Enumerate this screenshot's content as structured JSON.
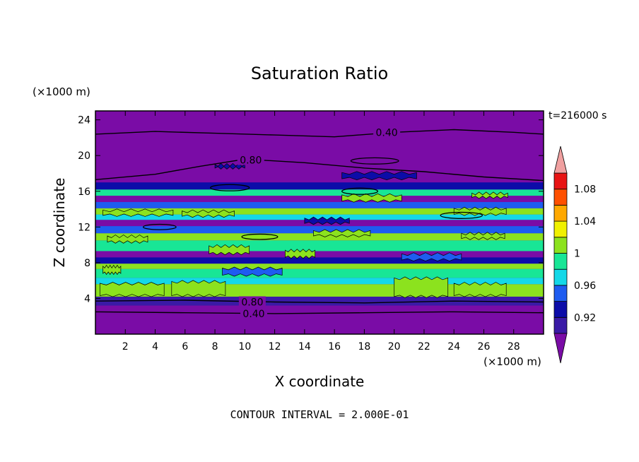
{
  "chart_data": {
    "type": "heatmap",
    "title": "Saturation Ratio",
    "time_label": "t=216000 s",
    "xlabel": "X coordinate",
    "ylabel": "Z coordinate",
    "x_unit": "(×1000 m)",
    "y_unit": "(×1000 m)",
    "xlim": [
      0,
      30
    ],
    "ylim": [
      0,
      25
    ],
    "x_ticks": [
      "2",
      "4",
      "6",
      "8",
      "10",
      "12",
      "14",
      "16",
      "18",
      "20",
      "22",
      "24",
      "26",
      "28"
    ],
    "y_ticks": [
      "4",
      "8",
      "12",
      "16",
      "20",
      "24"
    ],
    "contour_interval_text": "CONTOUR INTERVAL = 2.000E-01",
    "contour_labels": [
      {
        "text": "0.40",
        "x": 19.5,
        "z": 22.6
      },
      {
        "text": "0.80",
        "x": 10.4,
        "z": 19.5
      },
      {
        "text": "0.80",
        "x": 10.5,
        "z": 3.6
      },
      {
        "text": "0.40",
        "x": 10.6,
        "z": 2.3
      }
    ],
    "colorbar": {
      "levels": [
        0.9,
        0.92,
        0.94,
        0.96,
        0.98,
        1.0,
        1.02,
        1.04,
        1.06,
        1.08,
        1.1
      ],
      "tick_labels": [
        "0.92",
        "0.96",
        "1",
        "1.04",
        "1.08"
      ],
      "colors": [
        "#3a1aa6",
        "#0c0ca8",
        "#1e5cf0",
        "#14d8e8",
        "#18e696",
        "#8ce21e",
        "#f0f000",
        "#ffa800",
        "#ff5000",
        "#e81414"
      ],
      "under_color": "#7a0ca6",
      "over_color": "#f0a0a0"
    },
    "bands": [
      {
        "z0": 0.0,
        "z1": 3.2,
        "value": 0.6
      },
      {
        "z0": 3.2,
        "z1": 4.2,
        "value": 0.91
      },
      {
        "z0": 4.2,
        "z1": 5.6,
        "value": 1.01
      },
      {
        "z0": 5.6,
        "z1": 6.3,
        "value": 0.97
      },
      {
        "z0": 6.3,
        "z1": 7.3,
        "value": 0.99
      },
      {
        "z0": 7.3,
        "z1": 7.9,
        "value": 1.005
      },
      {
        "z0": 7.9,
        "z1": 8.6,
        "value": 0.93
      },
      {
        "z0": 8.6,
        "z1": 9.3,
        "value": 0.88
      },
      {
        "z0": 9.3,
        "z1": 10.5,
        "value": 0.99
      },
      {
        "z0": 10.5,
        "z1": 11.3,
        "value": 1.005
      },
      {
        "z0": 11.3,
        "z1": 12.1,
        "value": 0.94
      },
      {
        "z0": 12.1,
        "z1": 12.8,
        "value": 0.88
      },
      {
        "z0": 12.8,
        "z1": 13.4,
        "value": 0.97
      },
      {
        "z0": 13.4,
        "z1": 14.1,
        "value": 1.005
      },
      {
        "z0": 14.1,
        "z1": 14.8,
        "value": 0.95
      },
      {
        "z0": 14.8,
        "z1": 15.5,
        "value": 0.88
      },
      {
        "z0": 15.5,
        "z1": 16.2,
        "value": 0.99
      },
      {
        "z0": 16.2,
        "z1": 17.0,
        "value": 0.93
      },
      {
        "z0": 17.0,
        "z1": 25.5,
        "value": 0.6
      }
    ],
    "patches": [
      {
        "x0": 0.3,
        "x1": 4.6,
        "z0": 4.3,
        "z1": 5.7,
        "value": 1.01
      },
      {
        "x0": 5.1,
        "x1": 8.7,
        "z0": 4.3,
        "z1": 5.9,
        "value": 1.01
      },
      {
        "x0": 20.0,
        "x1": 23.6,
        "z0": 4.2,
        "z1": 6.3,
        "value": 1.01
      },
      {
        "x0": 24.0,
        "x1": 27.5,
        "z0": 4.3,
        "z1": 5.7,
        "value": 1.01
      },
      {
        "x0": 0.5,
        "x1": 1.7,
        "z0": 6.8,
        "z1": 7.6,
        "value": 1.01
      },
      {
        "x0": 7.6,
        "x1": 10.3,
        "z0": 9.0,
        "z1": 9.9,
        "value": 1.01
      },
      {
        "x0": 12.7,
        "x1": 14.7,
        "z0": 8.6,
        "z1": 9.4,
        "value": 1.01
      },
      {
        "x0": 0.8,
        "x1": 3.5,
        "z0": 10.3,
        "z1": 11.0,
        "value": 1.01
      },
      {
        "x0": 14.6,
        "x1": 18.4,
        "z0": 11.0,
        "z1": 11.6,
        "value": 1.01
      },
      {
        "x0": 24.5,
        "x1": 27.4,
        "z0": 10.7,
        "z1": 11.3,
        "value": 1.01
      },
      {
        "x0": 0.5,
        "x1": 5.2,
        "z0": 13.3,
        "z1": 13.9,
        "value": 1.01
      },
      {
        "x0": 5.8,
        "x1": 9.3,
        "z0": 13.2,
        "z1": 13.8,
        "value": 1.01
      },
      {
        "x0": 24.0,
        "x1": 27.5,
        "z0": 13.4,
        "z1": 14.1,
        "value": 1.01
      },
      {
        "x0": 16.5,
        "x1": 20.5,
        "z0": 14.9,
        "z1": 15.6,
        "value": 1.01
      },
      {
        "x0": 25.2,
        "x1": 27.6,
        "z0": 15.3,
        "z1": 15.8,
        "value": 1.01
      },
      {
        "x0": 8.5,
        "x1": 12.5,
        "z0": 6.6,
        "z1": 7.4,
        "value": 0.95
      },
      {
        "x0": 16.5,
        "x1": 21.5,
        "z0": 17.4,
        "z1": 18.1,
        "value": 0.92
      },
      {
        "x0": 8.0,
        "x1": 10.0,
        "z0": 18.6,
        "z1": 19.0,
        "value": 0.93
      },
      {
        "x0": 14.0,
        "x1": 17.0,
        "z0": 12.4,
        "z1": 13.0,
        "value": 0.93
      },
      {
        "x0": 20.5,
        "x1": 24.5,
        "z0": 8.3,
        "z1": 9.0,
        "value": 0.94
      }
    ],
    "contours": [
      {
        "value": 0.4,
        "points": [
          [
            0,
            22.4
          ],
          [
            4,
            22.7
          ],
          [
            8,
            22.5
          ],
          [
            12,
            22.3
          ],
          [
            16,
            22.1
          ],
          [
            20,
            22.6
          ],
          [
            24,
            22.9
          ],
          [
            28,
            22.6
          ],
          [
            30,
            22.4
          ]
        ]
      },
      {
        "value": 0.8,
        "points": [
          [
            0,
            17.3
          ],
          [
            4,
            17.9
          ],
          [
            7,
            18.8
          ],
          [
            10,
            19.6
          ],
          [
            14,
            19.2
          ],
          [
            18,
            18.6
          ],
          [
            22,
            18.2
          ],
          [
            26,
            17.6
          ],
          [
            30,
            17.2
          ]
        ]
      },
      {
        "value": 0.8,
        "points": [
          [
            0,
            3.7
          ],
          [
            6,
            3.8
          ],
          [
            12,
            3.6
          ],
          [
            18,
            3.5
          ],
          [
            24,
            3.7
          ],
          [
            30,
            3.6
          ]
        ]
      },
      {
        "value": 0.4,
        "points": [
          [
            0,
            2.5
          ],
          [
            6,
            2.4
          ],
          [
            12,
            2.3
          ],
          [
            18,
            2.4
          ],
          [
            24,
            2.5
          ],
          [
            30,
            2.4
          ]
        ]
      }
    ],
    "closed_contours": [
      {
        "value": 1.0,
        "cx": 17.7,
        "cz": 16.0,
        "rx": 1.2,
        "rz": 0.35
      },
      {
        "value": 1.0,
        "cx": 24.5,
        "cz": 13.3,
        "rx": 1.4,
        "rz": 0.35
      },
      {
        "value": 1.0,
        "cx": 4.3,
        "cz": 12.0,
        "rx": 1.1,
        "rz": 0.3
      },
      {
        "value": 1.0,
        "cx": 9.0,
        "cz": 16.4,
        "rx": 1.3,
        "rz": 0.35
      },
      {
        "value": 1.0,
        "cx": 11.0,
        "cz": 10.9,
        "rx": 1.2,
        "rz": 0.3
      },
      {
        "value": 0.8,
        "cx": 18.7,
        "cz": 19.4,
        "rx": 1.6,
        "rz": 0.35
      }
    ]
  }
}
